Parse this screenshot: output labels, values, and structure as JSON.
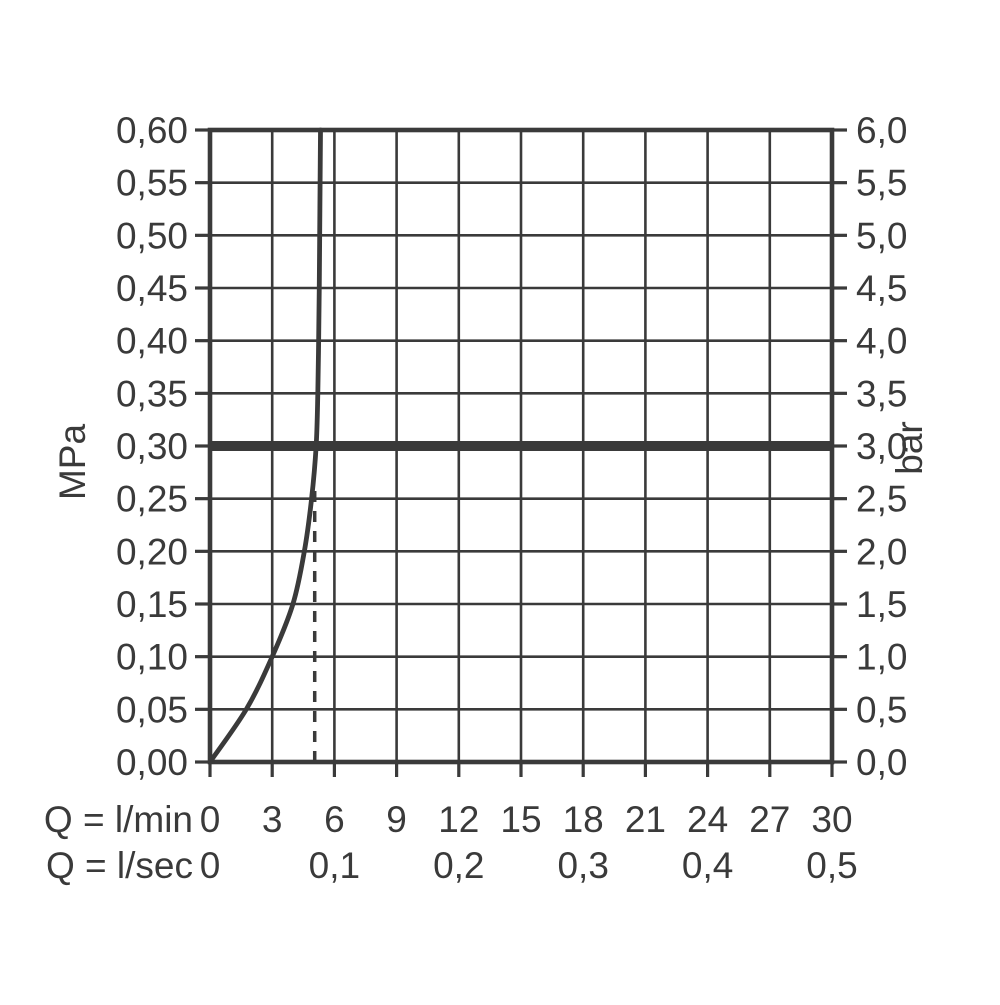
{
  "colors": {
    "ink": "#3a3a3a",
    "background": "#ffffff"
  },
  "chart_data": {
    "type": "line",
    "title": "",
    "description": "Flow rate vs pressure diagram with flow limiter curve",
    "grid": true,
    "x_axis": {
      "row1_label": "Q = l/min",
      "row1_ticks": [
        0,
        3,
        6,
        9,
        12,
        15,
        18,
        21,
        24,
        27,
        30
      ],
      "row1_tick_labels": [
        "0",
        "3",
        "6",
        "9",
        "12",
        "15",
        "18",
        "21",
        "24",
        "27",
        "30"
      ],
      "row2_label": "Q = l/sec",
      "row2_ticks_lmin": [
        0,
        6,
        12,
        18,
        24,
        30
      ],
      "row2_tick_labels": [
        "0",
        "0,1",
        "0,2",
        "0,3",
        "0,4",
        "0,5"
      ],
      "range_lmin": [
        0,
        30
      ],
      "gridline_step_lmin": 3
    },
    "y_axis_left": {
      "unit_label": "MPa",
      "ticks": [
        0.0,
        0.05,
        0.1,
        0.15,
        0.2,
        0.25,
        0.3,
        0.35,
        0.4,
        0.45,
        0.5,
        0.55,
        0.6
      ],
      "tick_labels": [
        "0,00",
        "0,05",
        "0,10",
        "0,15",
        "0,20",
        "0,25",
        "0,30",
        "0,35",
        "0,40",
        "0,45",
        "0,50",
        "0,55",
        "0,60"
      ],
      "range": [
        0,
        0.6
      ],
      "gridline_step": 0.05
    },
    "y_axis_right": {
      "unit_label": "bar",
      "ticks": [
        0.0,
        0.5,
        1.0,
        1.5,
        2.0,
        2.5,
        3.0,
        3.5,
        4.0,
        4.5,
        5.0,
        5.5,
        6.0
      ],
      "tick_labels": [
        "0,0",
        "0,5",
        "1,0",
        "1,5",
        "2,0",
        "2,5",
        "3,0",
        "3,5",
        "4,0",
        "4,5",
        "5,0",
        "5,5",
        "6,0"
      ],
      "range": [
        0,
        6.0
      ]
    },
    "reference_line": {
      "value_mpa": 0.3,
      "value_bar": 3.0,
      "style": "thick-solid-horizontal"
    },
    "dashed_guide_line": {
      "x_lmin": 5.05,
      "from_mpa": 0.0,
      "to_mpa": 0.26,
      "style": "dashed-vertical"
    },
    "series": [
      {
        "name": "flow-curve",
        "style": "solid",
        "points_lmin_mpa": [
          [
            0,
            0.0
          ],
          [
            1.75,
            0.05
          ],
          [
            3.0,
            0.1
          ],
          [
            4.0,
            0.15
          ],
          [
            4.55,
            0.2
          ],
          [
            4.9,
            0.25
          ],
          [
            5.12,
            0.3
          ],
          [
            5.2,
            0.35
          ],
          [
            5.24,
            0.4
          ],
          [
            5.27,
            0.45
          ],
          [
            5.29,
            0.5
          ],
          [
            5.31,
            0.55
          ],
          [
            5.33,
            0.6
          ]
        ]
      }
    ]
  }
}
